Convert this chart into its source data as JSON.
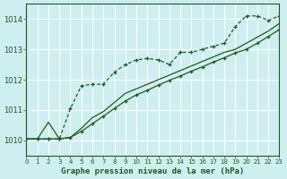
{
  "title": "Graphe pression niveau de la mer (hPa)",
  "background_color": "#ceeef0",
  "grid_color": "#b8dde0",
  "line_color": "#1a5c1a",
  "xlim": [
    0,
    23
  ],
  "ylim": [
    1009.5,
    1014.5
  ],
  "yticks": [
    1010,
    1011,
    1012,
    1013,
    1014
  ],
  "xticks": [
    0,
    1,
    2,
    3,
    4,
    5,
    6,
    7,
    8,
    9,
    10,
    11,
    12,
    13,
    14,
    15,
    16,
    17,
    18,
    19,
    20,
    21,
    22,
    23
  ],
  "series1_x": [
    0,
    1,
    2,
    3,
    4,
    5,
    6,
    7,
    8,
    9,
    10,
    11,
    12,
    13,
    14,
    15,
    16,
    17,
    18,
    19,
    20,
    21,
    22,
    23
  ],
  "series1_y": [
    1010.05,
    1010.05,
    1010.05,
    1010.05,
    1011.05,
    1011.8,
    1011.85,
    1011.85,
    1012.25,
    1012.5,
    1012.65,
    1012.7,
    1012.65,
    1012.5,
    1012.9,
    1012.9,
    1013.0,
    1013.1,
    1013.2,
    1013.75,
    1014.1,
    1014.1,
    1013.95,
    1014.1
  ],
  "series2_x": [
    0,
    1,
    2,
    3,
    4,
    5,
    6,
    7,
    8,
    9,
    10,
    11,
    12,
    13,
    14,
    15,
    16,
    17,
    18,
    19,
    20,
    21,
    22,
    23
  ],
  "series2_y": [
    1010.05,
    1010.05,
    1010.6,
    1010.05,
    1010.1,
    1010.4,
    1010.75,
    1010.95,
    1011.25,
    1011.55,
    1011.7,
    1011.85,
    1012.0,
    1012.15,
    1012.3,
    1012.45,
    1012.6,
    1012.75,
    1012.9,
    1013.0,
    1013.2,
    1013.4,
    1013.6,
    1013.85
  ],
  "series3_x": [
    0,
    1,
    2,
    3,
    4,
    5,
    6,
    7,
    8,
    9,
    10,
    11,
    12,
    13,
    14,
    15,
    16,
    17,
    18,
    19,
    20,
    21,
    22,
    23
  ],
  "series3_y": [
    1010.05,
    1010.05,
    1010.05,
    1010.05,
    1010.1,
    1010.3,
    1010.55,
    1010.8,
    1011.05,
    1011.3,
    1011.5,
    1011.65,
    1011.82,
    1011.98,
    1012.12,
    1012.28,
    1012.42,
    1012.58,
    1012.72,
    1012.88,
    1013.0,
    1013.2,
    1013.42,
    1013.65
  ]
}
